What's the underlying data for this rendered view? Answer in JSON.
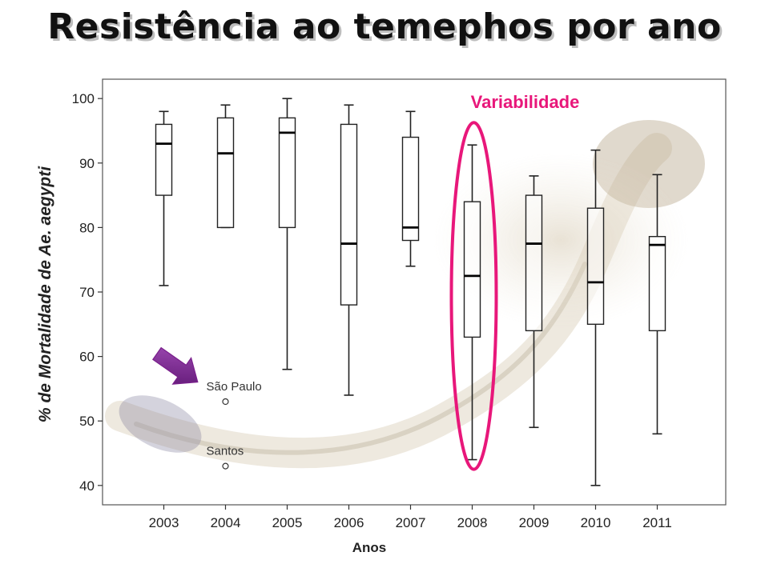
{
  "slide": {
    "title": "Resistência ao temephos por ano"
  },
  "chart_data": {
    "type": "box",
    "xlabel": "Anos",
    "ylabel": "% de Mortalidade de Ae. aegypti",
    "ylim": [
      37,
      103
    ],
    "yticks": [
      40,
      50,
      60,
      70,
      80,
      90,
      100
    ],
    "categories": [
      "2003",
      "2004",
      "2005",
      "2006",
      "2007",
      "2008",
      "2009",
      "2010",
      "2011"
    ],
    "boxes": [
      {
        "year": "2003",
        "min": 71,
        "q1": 85,
        "median": 93,
        "q3": 96,
        "max": 98
      },
      {
        "year": "2004",
        "min": 80,
        "q1": 80,
        "median": 91.5,
        "q3": 97,
        "max": 99
      },
      {
        "year": "2005",
        "min": 58,
        "q1": 80,
        "median": 94.7,
        "q3": 97,
        "max": 100
      },
      {
        "year": "2006",
        "min": 54,
        "q1": 68,
        "median": 77.5,
        "q3": 96,
        "max": 99
      },
      {
        "year": "2007",
        "min": 74,
        "q1": 78,
        "median": 80,
        "q3": 94,
        "max": 98
      },
      {
        "year": "2008",
        "min": 44,
        "q1": 63,
        "median": 72.5,
        "q3": 84,
        "max": 92.8
      },
      {
        "year": "2009",
        "min": 49,
        "q1": 64,
        "median": 77.5,
        "q3": 85,
        "max": 88
      },
      {
        "year": "2010",
        "min": 40,
        "q1": 65,
        "median": 71.5,
        "q3": 83,
        "max": 92
      },
      {
        "year": "2011",
        "min": 48,
        "q1": 64,
        "median": 77.3,
        "q3": 78.6,
        "max": 88.2
      }
    ],
    "outliers": [
      {
        "year": "2004",
        "y": 53,
        "label": "São Paulo"
      },
      {
        "year": "2004",
        "y": 43,
        "label": "Santos"
      }
    ],
    "highlight": {
      "year": "2008",
      "label": "Variabilidade",
      "color": "#e8177a"
    },
    "arrow_color": "#7a1f8c",
    "grid": false,
    "legend": "none"
  }
}
